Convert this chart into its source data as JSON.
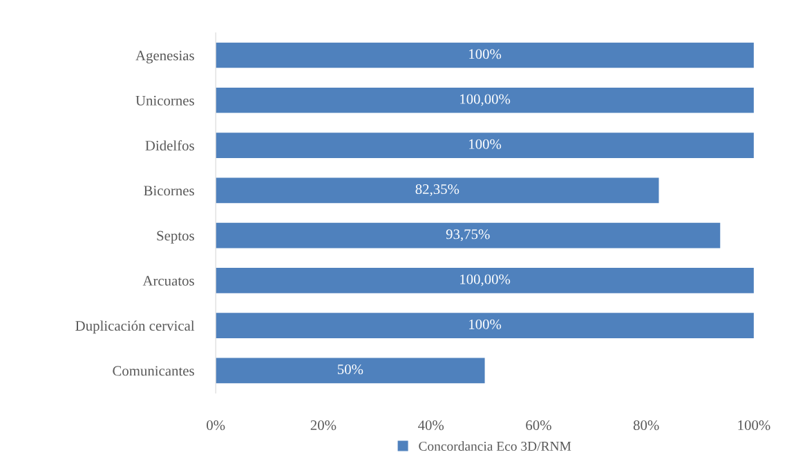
{
  "chart_data": {
    "type": "bar",
    "orientation": "horizontal",
    "categories": [
      "Agenesias",
      "Unicornes",
      "Didelfos",
      "Bicornes",
      "Septos",
      "Arcuatos",
      "Duplicación cervical",
      "Comunicantes"
    ],
    "series": [
      {
        "name": "Concordancia Eco 3D/RNM",
        "color": "#4f81bd",
        "values": [
          100,
          100,
          100,
          82.35,
          93.75,
          100,
          100,
          50
        ],
        "value_labels": [
          "100%",
          "100,00%",
          "100%",
          "82,35%",
          "93,75%",
          "100,00%",
          "100%",
          "50%"
        ]
      }
    ],
    "xlim": [
      0,
      100
    ],
    "xticks": [
      {
        "value": 0,
        "label": "0%"
      },
      {
        "value": 20,
        "label": "20%"
      },
      {
        "value": 40,
        "label": "40%"
      },
      {
        "value": 60,
        "label": "60%"
      },
      {
        "value": 80,
        "label": "80%"
      },
      {
        "value": 100,
        "label": "100%"
      }
    ],
    "grid": false,
    "legend": "bottom"
  }
}
